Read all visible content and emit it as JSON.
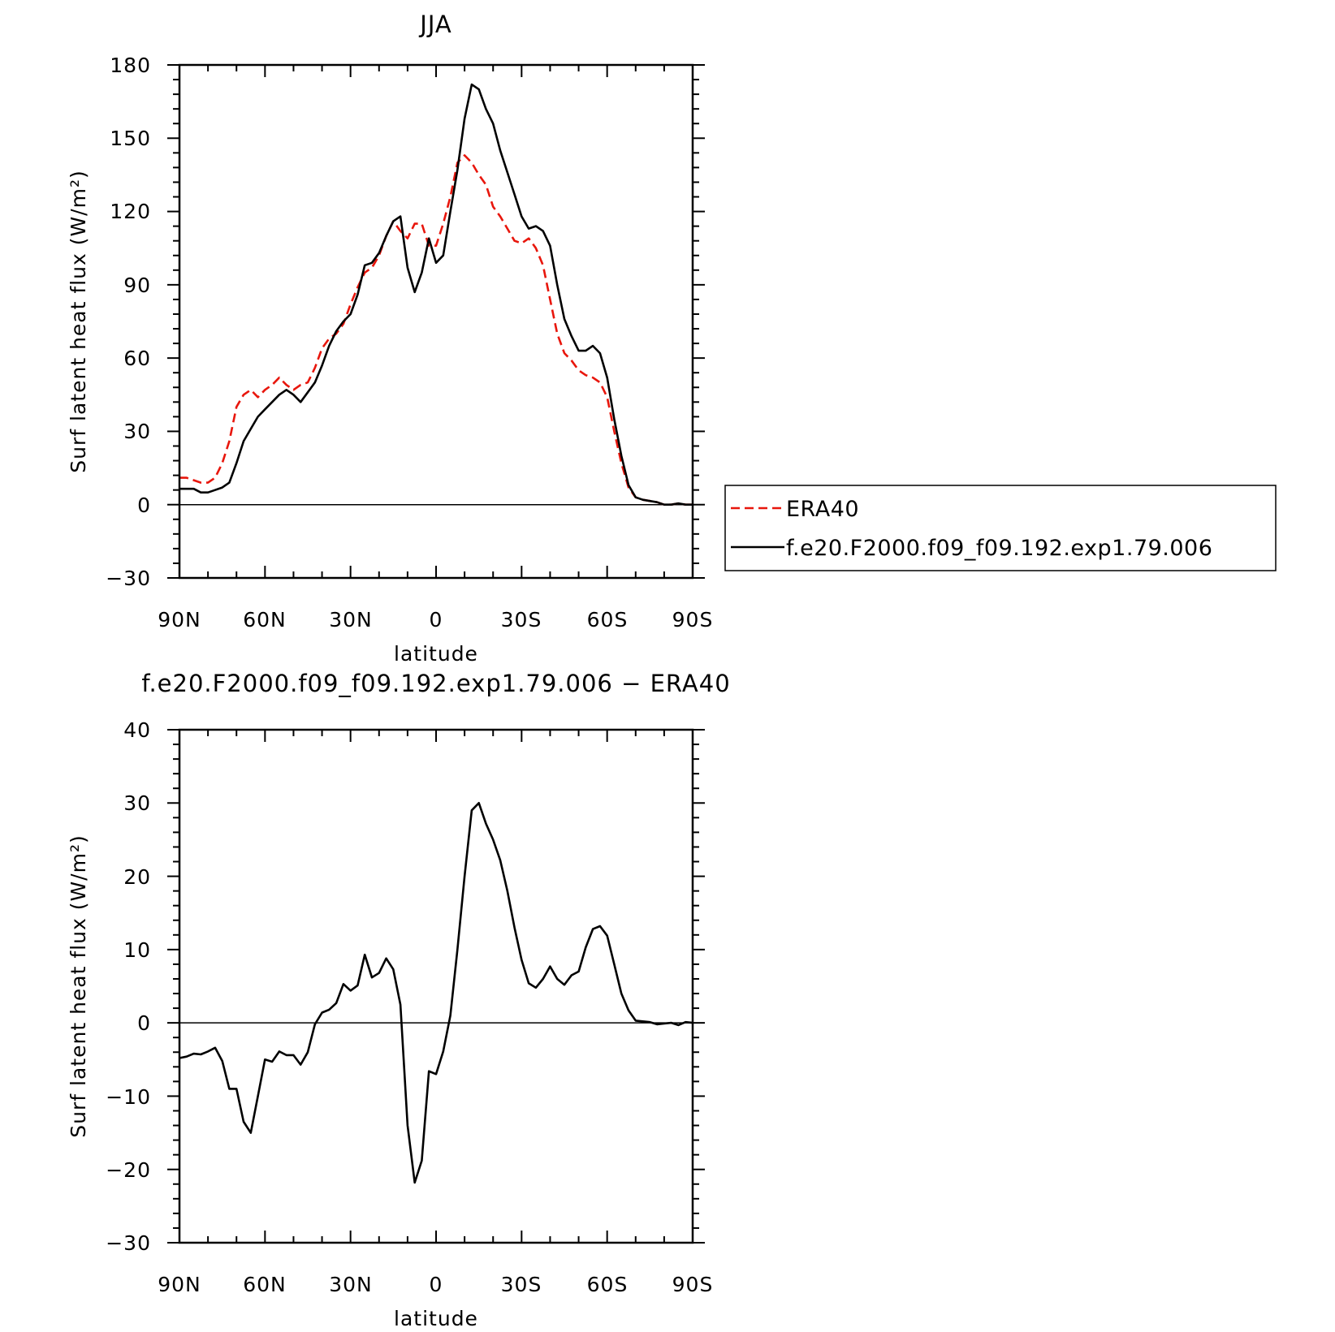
{
  "colors": {
    "era40": "#e8160c",
    "model": "#000000"
  },
  "legend": {
    "placement": "right, beside top panel",
    "items": [
      {
        "label": "ERA40",
        "color": "#e8160c",
        "style": "dashed"
      },
      {
        "label": "f.e20.F2000.f09_f09.192.exp1.79.006",
        "color": "#000000",
        "style": "solid"
      }
    ]
  },
  "chart_data": [
    {
      "type": "line",
      "title": "JJA",
      "xlabel": "latitude",
      "ylabel": "Surf latent heat flux (W/m²)",
      "xlim": [
        90,
        -90
      ],
      "ylim": [
        -30,
        180
      ],
      "xticks": [
        90,
        60,
        30,
        0,
        -30,
        -60,
        -90
      ],
      "xtick_labels": [
        "90N",
        "60N",
        "30N",
        "0",
        "30S",
        "60S",
        "90S"
      ],
      "yticks": [
        180,
        150,
        120,
        90,
        60,
        30,
        0,
        -30
      ],
      "ytick_labels": [
        "180",
        "150",
        "120",
        "90",
        "60",
        "30",
        "0",
        "−30"
      ],
      "reference_line": 0,
      "series": [
        {
          "name": "ERA40",
          "color": "#e8160c",
          "style": "dashed",
          "x": [
            90,
            87.5,
            85,
            82.5,
            80,
            77.5,
            75,
            72.5,
            70,
            67.5,
            65,
            62.5,
            60,
            57.5,
            55,
            52.5,
            50,
            47.5,
            45,
            42.5,
            40,
            37.5,
            35,
            32.5,
            30,
            27.5,
            25,
            22.5,
            20,
            17.5,
            15,
            12.5,
            10,
            7.5,
            5,
            2.5,
            0,
            -2.5,
            -5,
            -7.5,
            -10,
            -12.5,
            -15,
            -17.5,
            -20,
            -22.5,
            -25,
            -27.5,
            -30,
            -32.5,
            -35,
            -37.5,
            -40,
            -42.5,
            -45,
            -47.5,
            -50,
            -52.5,
            -55,
            -57.5,
            -60,
            -62.5,
            -65,
            -67.5,
            -70,
            -72.5,
            -75,
            -77.5,
            -80,
            -82.5,
            -85,
            -87.5,
            -90
          ],
          "values": [
            11,
            11,
            10,
            9,
            9,
            11,
            17,
            26,
            40,
            45,
            47,
            44,
            47,
            49,
            52,
            49,
            47,
            49,
            50,
            56,
            64,
            68,
            70,
            74,
            82,
            89,
            95,
            97,
            102,
            110,
            116,
            112,
            109,
            115,
            115,
            106,
            106,
            115,
            126,
            140,
            143,
            140,
            135,
            131,
            122,
            118,
            113,
            108,
            107,
            109,
            105,
            98,
            84,
            70,
            62,
            59,
            55,
            53,
            52,
            50,
            44,
            30,
            17,
            7,
            3,
            2,
            1.5,
            1,
            0,
            0,
            0.5,
            0,
            0
          ]
        },
        {
          "name": "f.e20.F2000.f09_f09.192.exp1.79.006",
          "color": "#000000",
          "style": "solid",
          "x": [
            90,
            87.5,
            85,
            82.5,
            80,
            77.5,
            75,
            72.5,
            70,
            67.5,
            65,
            62.5,
            60,
            57.5,
            55,
            52.5,
            50,
            47.5,
            45,
            42.5,
            40,
            37.5,
            35,
            32.5,
            30,
            27.5,
            25,
            22.5,
            20,
            17.5,
            15,
            12.5,
            10,
            7.5,
            5,
            2.5,
            0,
            -2.5,
            -5,
            -7.5,
            -10,
            -12.5,
            -15,
            -17.5,
            -20,
            -22.5,
            -25,
            -27.5,
            -30,
            -32.5,
            -35,
            -37.5,
            -40,
            -42.5,
            -45,
            -47.5,
            -50,
            -52.5,
            -55,
            -57.5,
            -60,
            -62.5,
            -65,
            -67.5,
            -70,
            -72.5,
            -75,
            -77.5,
            -80,
            -82.5,
            -85,
            -87.5,
            -90
          ],
          "values": [
            6.5,
            6.5,
            6.5,
            5,
            5,
            6,
            7,
            9,
            17,
            26,
            31,
            36,
            39,
            42,
            45,
            47,
            45,
            42,
            46,
            50,
            57,
            65,
            71,
            75,
            78,
            86,
            98,
            99,
            103,
            110,
            116,
            118,
            97,
            87,
            95,
            109,
            99,
            102,
            120,
            137,
            158,
            172,
            170,
            162,
            156,
            145,
            136,
            127,
            118,
            113,
            114,
            112,
            106,
            90,
            76,
            69,
            63,
            63,
            65,
            62,
            52,
            35,
            20,
            8,
            3,
            2,
            1.5,
            1,
            0,
            0,
            0.5,
            0,
            0
          ]
        }
      ]
    },
    {
      "type": "line",
      "title": "f.e20.F2000.f09_f09.192.exp1.79.006 − ERA40",
      "xlabel": "latitude",
      "ylabel": "Surf latent heat flux (W/m²)",
      "xlim": [
        90,
        -90
      ],
      "ylim": [
        -30,
        40
      ],
      "xticks": [
        90,
        60,
        30,
        0,
        -30,
        -60,
        -90
      ],
      "xtick_labels": [
        "90N",
        "60N",
        "30N",
        "0",
        "30S",
        "60S",
        "90S"
      ],
      "yticks": [
        40,
        30,
        20,
        10,
        0,
        -10,
        -20,
        -30
      ],
      "ytick_labels": [
        "40",
        "30",
        "20",
        "10",
        "0",
        "−10",
        "−20",
        "−30"
      ],
      "reference_line": 0,
      "series": [
        {
          "color": "#000000",
          "style": "solid",
          "x": [
            90,
            87.5,
            85,
            82.5,
            80,
            77.5,
            75,
            72.5,
            70,
            67.5,
            65,
            62.5,
            60,
            57.5,
            55,
            52.5,
            50,
            47.5,
            45,
            42.5,
            40,
            37.5,
            35,
            32.5,
            30,
            27.5,
            25,
            22.5,
            20,
            17.5,
            15,
            12.5,
            10,
            7.5,
            5,
            2.5,
            0,
            -2.5,
            -5,
            -7.5,
            -10,
            -12.5,
            -15,
            -17.5,
            -20,
            -22.5,
            -25,
            -27.5,
            -30,
            -32.5,
            -35,
            -37.5,
            -40,
            -42.5,
            -45,
            -47.5,
            -50,
            -52.5,
            -55,
            -57.5,
            -60,
            -62.5,
            -65,
            -67.5,
            -70,
            -72.5,
            -75,
            -77.5,
            -80,
            -82.5,
            -85,
            -87.5,
            -90
          ],
          "values": [
            -4.8,
            -4.6,
            -4.2,
            -4.3,
            -3.9,
            -3.4,
            -5.2,
            -9,
            -9,
            -13.5,
            -15,
            -10,
            -5,
            -5.3,
            -3.9,
            -4.4,
            -4.4,
            -5.7,
            -4,
            -0.2,
            1.4,
            1.8,
            2.7,
            5.3,
            4.4,
            5.1,
            9.3,
            6.2,
            6.8,
            8.8,
            7.3,
            2.5,
            -14,
            -21.8,
            -18.8,
            -6.6,
            -7,
            -3.9,
            1,
            10,
            20,
            29,
            30,
            27.2,
            25,
            22.2,
            18,
            13,
            8.6,
            5.4,
            4.8,
            6,
            7.7,
            6,
            5.2,
            6.5,
            7,
            10.3,
            12.8,
            13.2,
            11.9,
            8,
            4,
            1.7,
            0.3,
            0.2,
            0.1,
            -0.2,
            -0.1,
            0,
            -0.3,
            0.1,
            0
          ]
        }
      ]
    }
  ]
}
